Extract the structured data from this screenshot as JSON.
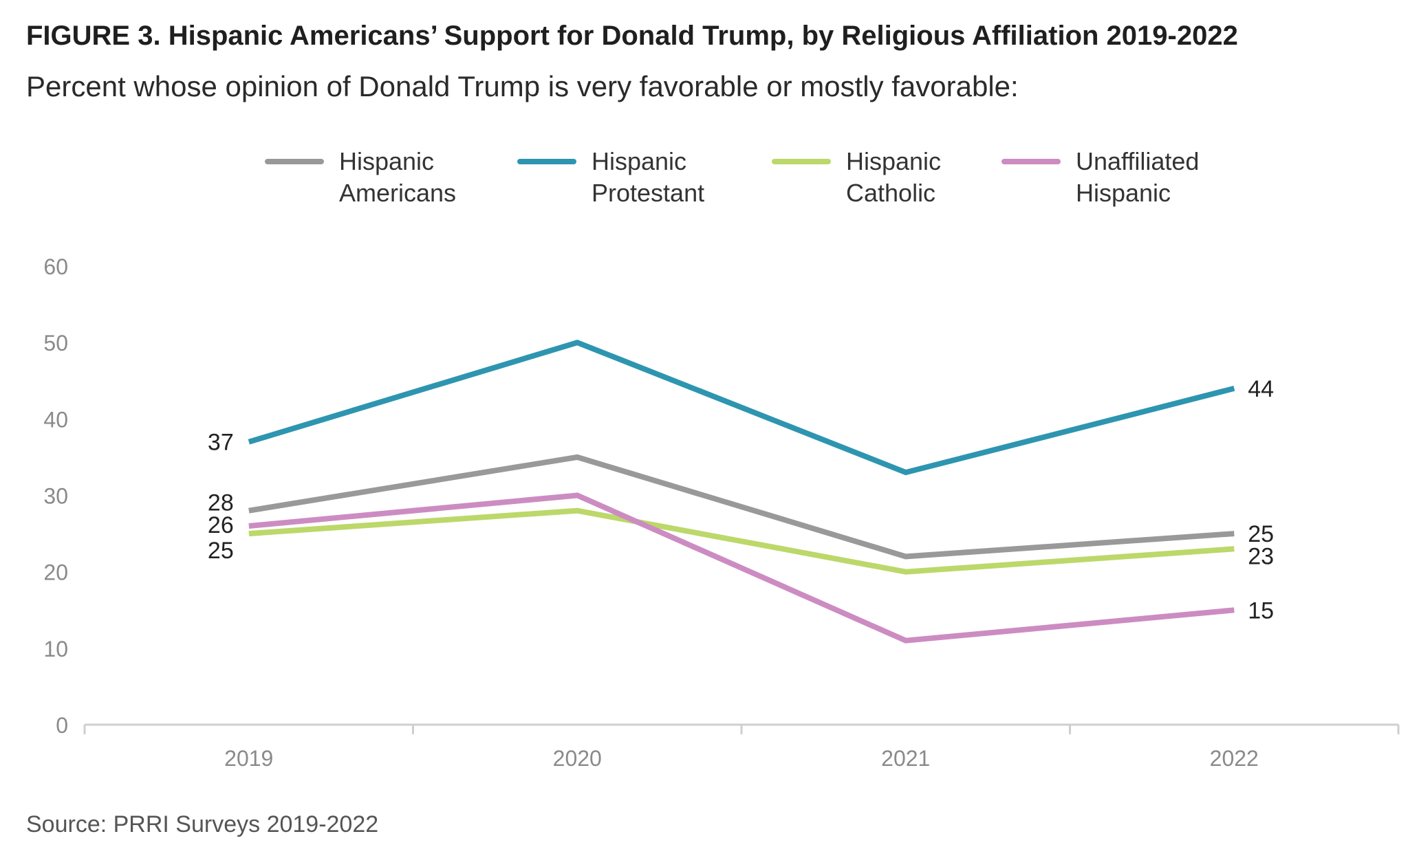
{
  "title": "FIGURE 3. Hispanic Americans’ Support for Donald Trump, by Religious Affiliation 2019-2022",
  "subtitle": "Percent whose opinion of Donald Trump is very favorable or mostly favorable:",
  "source": "Source: PRRI Surveys 2019-2022",
  "chart_data": {
    "type": "line",
    "title": "FIGURE 3. Hispanic Americans’ Support for Donald Trump, by Religious Affiliation 2019-2022",
    "subtitle": "Percent whose opinion of Donald Trump is very favorable or mostly favorable:",
    "categories": [
      "2019",
      "2020",
      "2021",
      "2022"
    ],
    "ylim": [
      0,
      60
    ],
    "yticks": [
      0,
      10,
      20,
      30,
      40,
      50,
      60
    ],
    "grid": false,
    "legend_position": "top",
    "series": [
      {
        "name": "Hispanic\nAmericans",
        "color": "#999999",
        "values": [
          28,
          35,
          22,
          25
        ],
        "labels": [
          "28",
          null,
          null,
          "25"
        ]
      },
      {
        "name": "Hispanic\nProtestant",
        "color": "#2e95b0",
        "values": [
          37,
          50,
          33,
          44
        ],
        "labels": [
          "37",
          null,
          null,
          "44"
        ]
      },
      {
        "name": "Hispanic\nCatholic",
        "color": "#bcd86a",
        "values": [
          25,
          28,
          20,
          23
        ],
        "labels": [
          "25",
          null,
          null,
          "23"
        ]
      },
      {
        "name": "Unaffiliated\nHispanic",
        "color": "#cc8cc2",
        "values": [
          26,
          30,
          11,
          15
        ],
        "labels": [
          "26",
          null,
          null,
          "15"
        ]
      }
    ]
  }
}
